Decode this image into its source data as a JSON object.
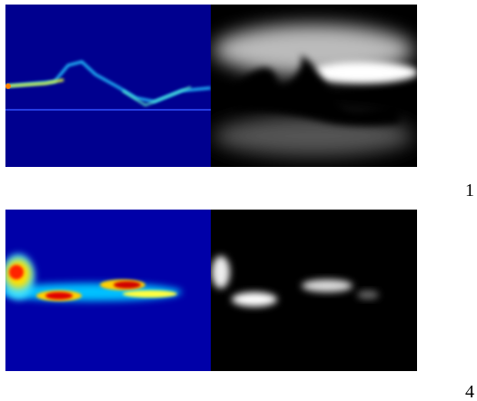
{
  "labels": [
    "1",
    "4"
  ]
}
